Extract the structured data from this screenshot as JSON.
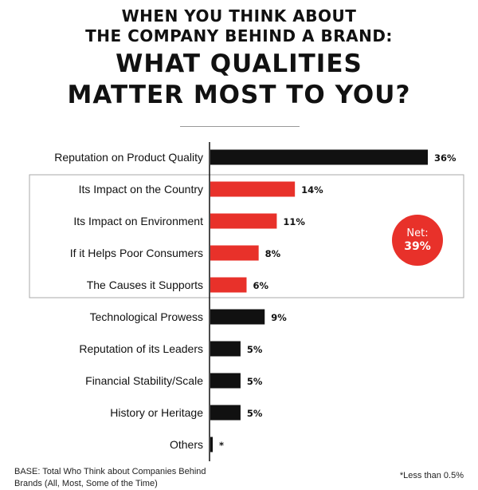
{
  "header": {
    "line1": "WHEN YOU THINK ABOUT",
    "line2": "THE COMPANY BEHIND A BRAND:",
    "line3": "WHAT QUALITIES",
    "line4": "MATTER MOST TO YOU?"
  },
  "net": {
    "label": "Net:",
    "value": "39%"
  },
  "footer": {
    "base_line1": "BASE: Total Who Think about Companies Behind",
    "base_line2": "Brands (All, Most, Some of the Time)",
    "note": "*Less than 0.5%"
  },
  "colors": {
    "highlight": "#e8312a",
    "default": "#111111"
  },
  "chart_data": {
    "type": "bar",
    "orientation": "horizontal",
    "categories": [
      "Reputation on Product Quality",
      "Its Impact on the Country",
      "Its Impact on Environment",
      "If it Helps Poor Consumers",
      "The Causes it Supports",
      "Technological Prowess",
      "Reputation of its Leaders",
      "Financial Stability/Scale",
      "History or Heritage",
      "Others"
    ],
    "values": [
      36,
      14,
      11,
      8,
      6,
      9,
      5,
      5,
      5,
      0.4
    ],
    "labels": [
      "36%",
      "14%",
      "11%",
      "8%",
      "6%",
      "9%",
      "5%",
      "5%",
      "5%",
      "*"
    ],
    "highlighted": [
      false,
      true,
      true,
      true,
      true,
      false,
      false,
      false,
      false,
      false
    ],
    "xlim": [
      0,
      36
    ],
    "grid": false,
    "legend": "none"
  }
}
